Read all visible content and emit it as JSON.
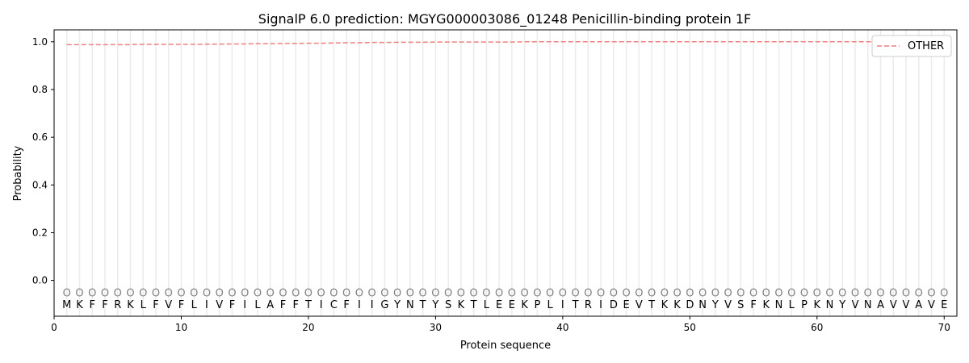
{
  "chart_data": {
    "type": "line",
    "title": "SignalP 6.0 prediction: MGYG000003086_01248 Penicillin-binding protein 1F",
    "xlabel": "Protein sequence",
    "ylabel": "Probability",
    "xlim": [
      0,
      71
    ],
    "ylim": [
      -0.15,
      1.05
    ],
    "xticks": [
      0,
      10,
      20,
      30,
      40,
      50,
      60,
      70
    ],
    "yticks": [
      0.0,
      0.2,
      0.4,
      0.6,
      0.8,
      1.0
    ],
    "sequence": [
      "M",
      "K",
      "F",
      "F",
      "R",
      "K",
      "L",
      "F",
      "V",
      "F",
      "L",
      "I",
      "V",
      "F",
      "I",
      "L",
      "A",
      "F",
      "F",
      "T",
      "I",
      "C",
      "F",
      "I",
      "I",
      "G",
      "Y",
      "N",
      "T",
      "Y",
      "S",
      "K",
      "T",
      "L",
      "E",
      "E",
      "K",
      "P",
      "L",
      "I",
      "T",
      "R",
      "I",
      "D",
      "E",
      "V",
      "T",
      "K",
      "K",
      "D",
      "N",
      "Y",
      "V",
      "S",
      "F",
      "K",
      "N",
      "L",
      "P",
      "K",
      "N",
      "Y",
      "V",
      "N",
      "A",
      "V",
      "V",
      "A",
      "V",
      "E"
    ],
    "predicted_label": "O",
    "grid": "vertical",
    "legend": "top-right",
    "series": [
      {
        "name": "OTHER",
        "color": "#f08080",
        "style": "dashed",
        "values": [
          0.988,
          0.988,
          0.988,
          0.988,
          0.988,
          0.988,
          0.989,
          0.989,
          0.989,
          0.989,
          0.989,
          0.99,
          0.99,
          0.991,
          0.991,
          0.992,
          0.992,
          0.993,
          0.993,
          0.994,
          0.994,
          0.995,
          0.996,
          0.996,
          0.997,
          0.997,
          0.998,
          0.998,
          0.998,
          0.999,
          0.999,
          0.999,
          0.999,
          0.999,
          0.999,
          0.999,
          1.0,
          1.0,
          1.0,
          1.0,
          1.0,
          1.0,
          1.0,
          1.0,
          1.0,
          1.0,
          1.0,
          1.0,
          1.0,
          1.0,
          1.0,
          1.0,
          1.0,
          1.0,
          1.0,
          1.0,
          1.0,
          1.0,
          1.0,
          1.0,
          1.0,
          1.0,
          1.0,
          1.0,
          1.0,
          1.0,
          1.0,
          1.0,
          1.0,
          1.0
        ]
      }
    ]
  }
}
